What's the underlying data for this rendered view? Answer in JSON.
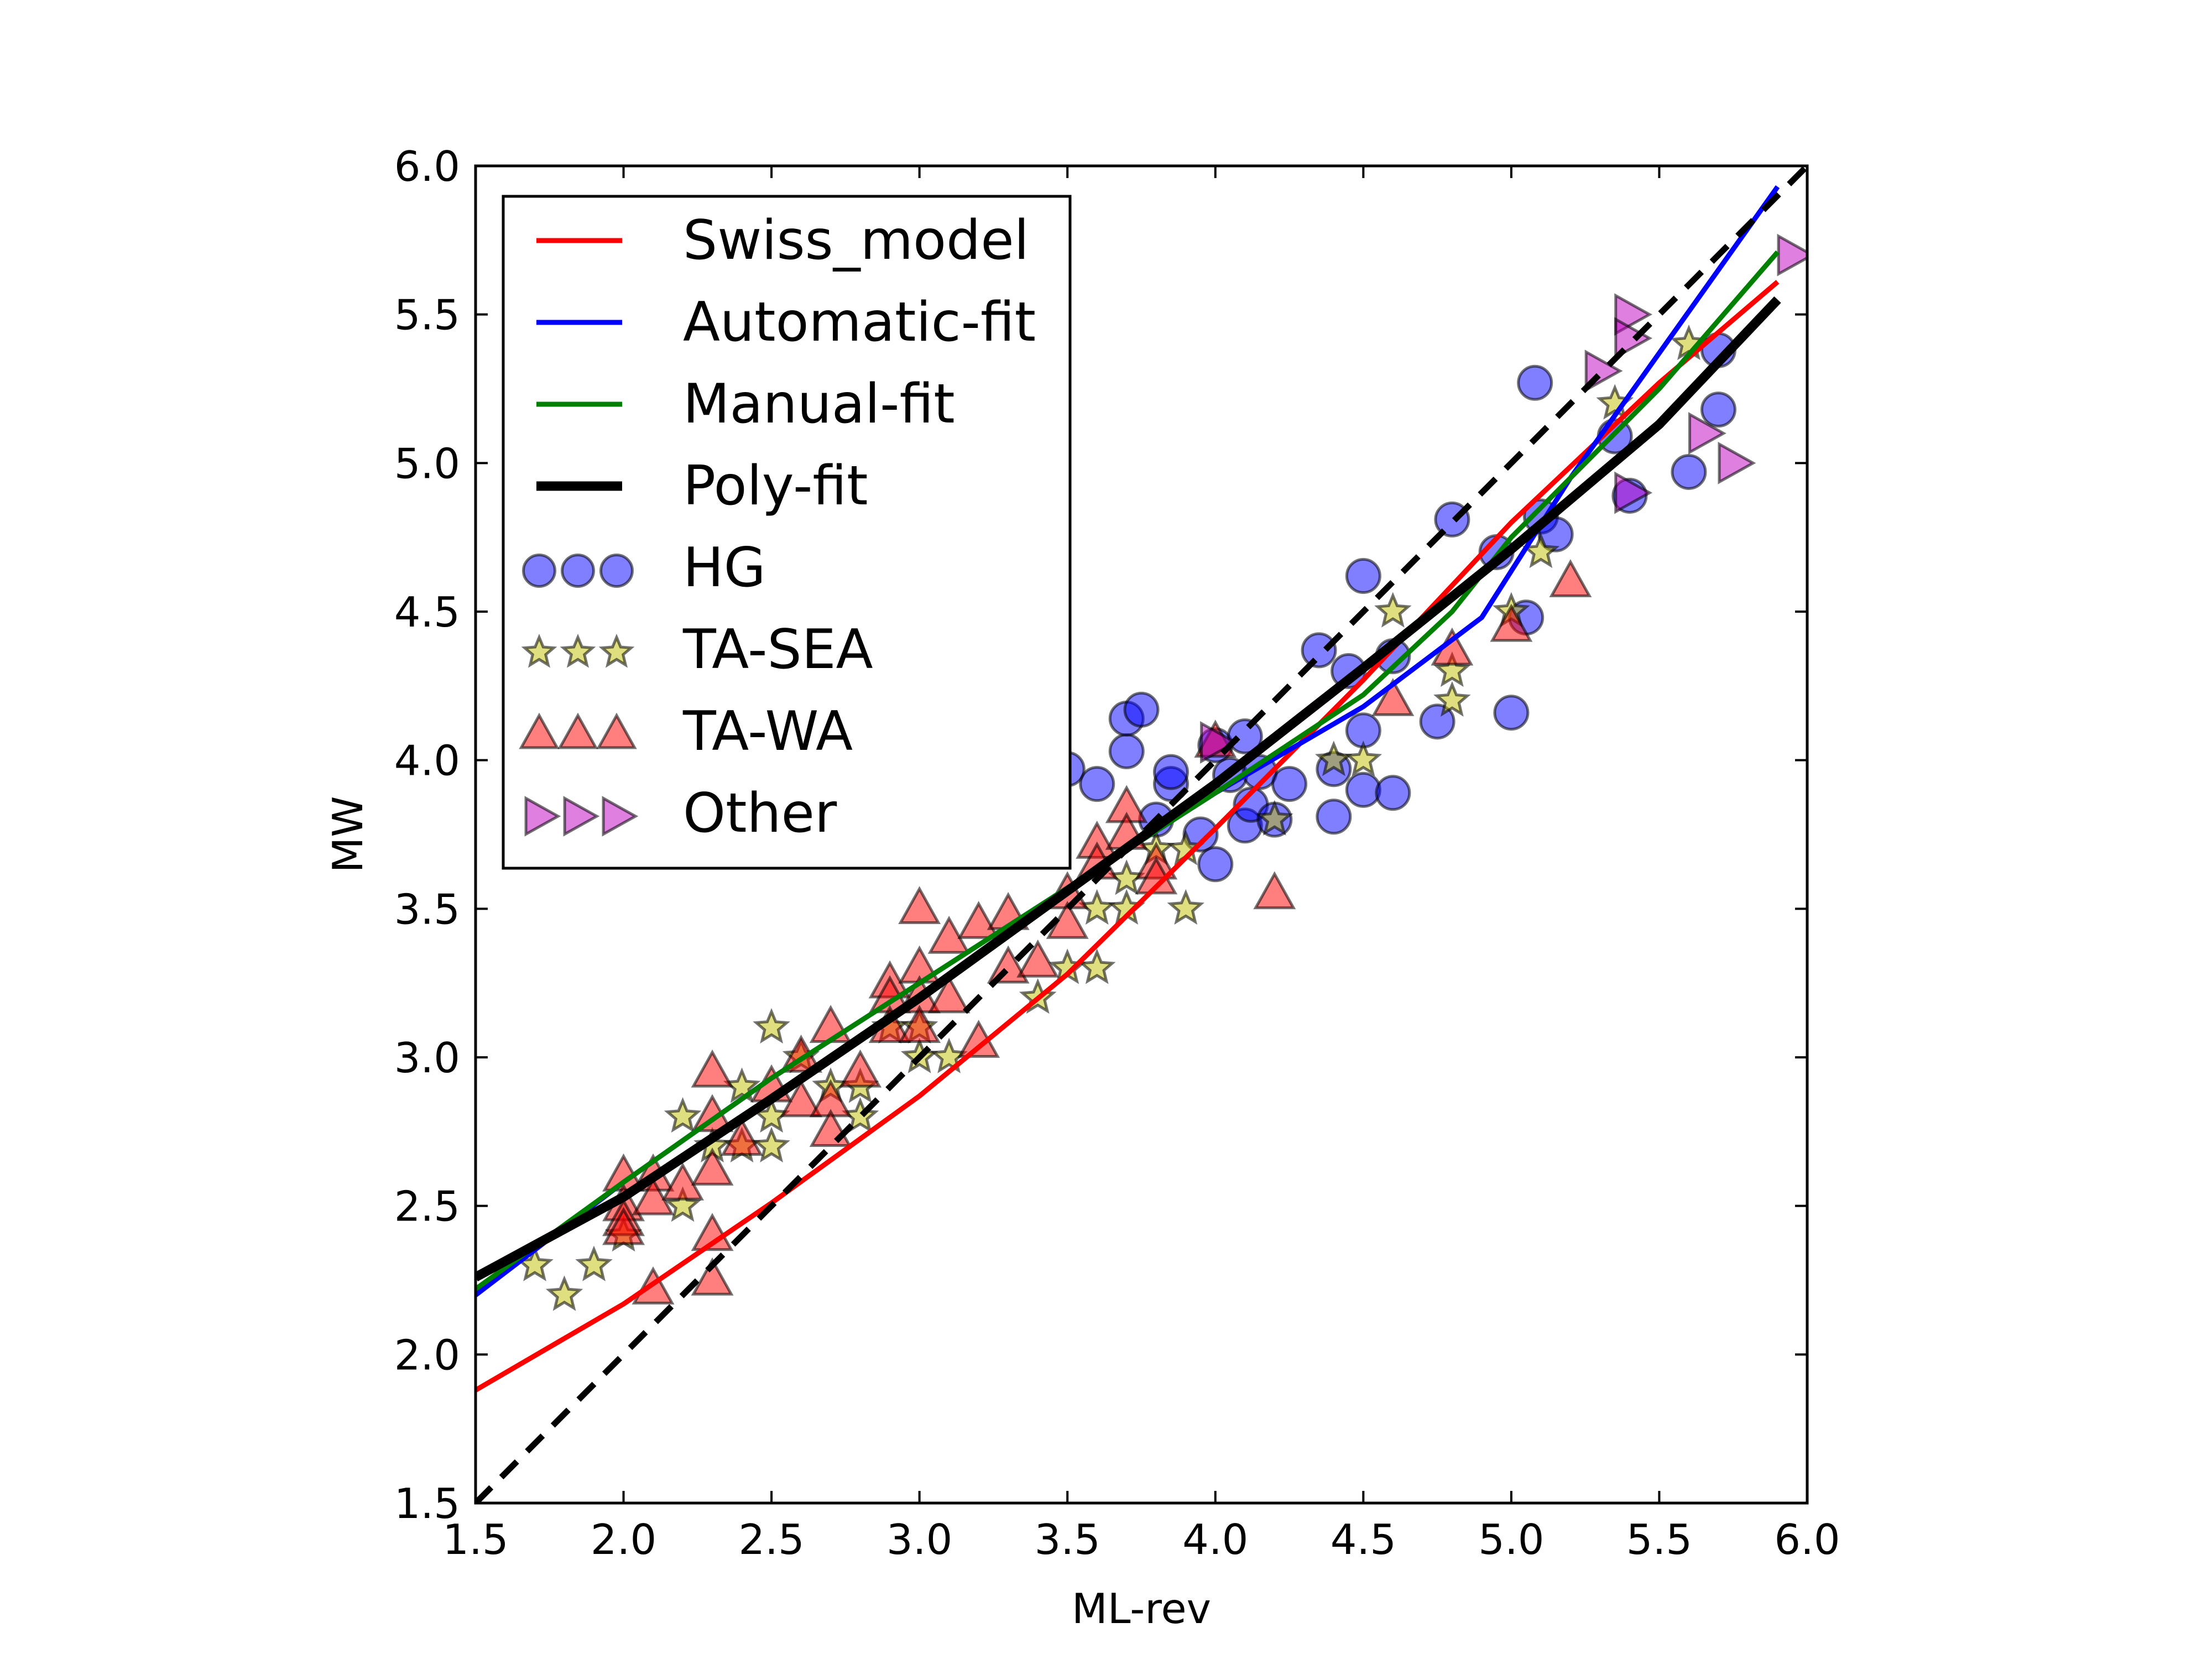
{
  "chart_data": {
    "type": "scatter",
    "title": "",
    "xlabel": "ML-rev",
    "ylabel": "MW",
    "xlim": [
      1.5,
      6.0
    ],
    "ylim": [
      1.5,
      6.0
    ],
    "xticks": [
      "1.5",
      "2.0",
      "2.5",
      "3.0",
      "3.5",
      "4.0",
      "4.5",
      "5.0",
      "5.5",
      "6.0"
    ],
    "yticks": [
      "1.5",
      "2.0",
      "2.5",
      "3.0",
      "3.5",
      "4.0",
      "4.5",
      "5.0",
      "5.5",
      "6.0"
    ],
    "grid": false,
    "legend_position": "top-left",
    "lines": [
      {
        "name": "Swiss_model",
        "color": "#ff0000",
        "points": [
          [
            1.5,
            1.88
          ],
          [
            2.0,
            2.17
          ],
          [
            2.5,
            2.51
          ],
          [
            3.0,
            2.87
          ],
          [
            3.5,
            3.28
          ],
          [
            4.0,
            3.77
          ],
          [
            4.5,
            4.27
          ],
          [
            5.0,
            4.8
          ],
          [
            5.5,
            5.27
          ],
          [
            5.9,
            5.61
          ]
        ]
      },
      {
        "name": "Automatic-fit",
        "color": "#0000ff",
        "points": [
          [
            1.5,
            2.2
          ],
          [
            2.0,
            2.58
          ],
          [
            2.5,
            2.93
          ],
          [
            3.0,
            3.25
          ],
          [
            3.5,
            3.57
          ],
          [
            4.0,
            3.89
          ],
          [
            4.5,
            4.18
          ],
          [
            4.9,
            4.48
          ],
          [
            5.2,
            4.95
          ],
          [
            5.5,
            5.37
          ],
          [
            5.9,
            5.93
          ]
        ]
      },
      {
        "name": "Manual-fit",
        "color": "#008000",
        "points": [
          [
            1.5,
            2.22
          ],
          [
            2.0,
            2.58
          ],
          [
            2.5,
            2.93
          ],
          [
            3.0,
            3.25
          ],
          [
            3.5,
            3.57
          ],
          [
            4.0,
            3.89
          ],
          [
            4.5,
            4.22
          ],
          [
            4.8,
            4.5
          ],
          [
            5.0,
            4.75
          ],
          [
            5.5,
            5.25
          ],
          [
            5.9,
            5.71
          ]
        ]
      },
      {
        "name": "Poly-fit",
        "color": "#000000",
        "points": [
          [
            1.5,
            2.26
          ],
          [
            2.0,
            2.53
          ],
          [
            2.5,
            2.86
          ],
          [
            3.0,
            3.2
          ],
          [
            3.5,
            3.56
          ],
          [
            4.0,
            3.92
          ],
          [
            4.5,
            4.31
          ],
          [
            5.0,
            4.71
          ],
          [
            5.5,
            5.13
          ],
          [
            5.9,
            5.55
          ]
        ]
      },
      {
        "name": "",
        "color": "#000000",
        "dashed": true,
        "points": [
          [
            1.5,
            1.5
          ],
          [
            6.0,
            6.0
          ]
        ]
      }
    ],
    "series": [
      {
        "name": "HG",
        "marker": "circle",
        "color": "#0000ff",
        "points": [
          [
            3.5,
            3.97
          ],
          [
            3.6,
            3.92
          ],
          [
            3.7,
            4.03
          ],
          [
            3.7,
            4.14
          ],
          [
            3.75,
            4.17
          ],
          [
            3.8,
            3.8
          ],
          [
            3.85,
            3.92
          ],
          [
            3.85,
            3.96
          ],
          [
            3.95,
            3.75
          ],
          [
            4.0,
            3.65
          ],
          [
            4.0,
            4.05
          ],
          [
            4.05,
            3.95
          ],
          [
            4.1,
            3.78
          ],
          [
            4.1,
            4.08
          ],
          [
            4.12,
            3.85
          ],
          [
            4.15,
            3.96
          ],
          [
            4.2,
            3.8
          ],
          [
            4.25,
            3.92
          ],
          [
            4.35,
            4.37
          ],
          [
            4.4,
            3.97
          ],
          [
            4.4,
            3.81
          ],
          [
            4.45,
            4.3
          ],
          [
            4.5,
            3.9
          ],
          [
            4.5,
            4.1
          ],
          [
            4.5,
            4.62
          ],
          [
            4.6,
            3.89
          ],
          [
            4.6,
            4.35
          ],
          [
            4.75,
            4.13
          ],
          [
            4.8,
            4.81
          ],
          [
            4.95,
            4.7
          ],
          [
            5.0,
            4.16
          ],
          [
            5.05,
            4.48
          ],
          [
            5.08,
            5.27
          ],
          [
            5.1,
            4.82
          ],
          [
            5.15,
            4.76
          ],
          [
            5.35,
            5.09
          ],
          [
            5.4,
            4.89
          ],
          [
            5.6,
            4.97
          ],
          [
            5.7,
            5.38
          ],
          [
            5.7,
            5.18
          ]
        ]
      },
      {
        "name": "TA-SEA",
        "marker": "star",
        "color": "#bfbf00",
        "points": [
          [
            1.7,
            2.3
          ],
          [
            1.8,
            2.2
          ],
          [
            1.9,
            2.3
          ],
          [
            2.0,
            2.4
          ],
          [
            2.2,
            2.5
          ],
          [
            2.2,
            2.8
          ],
          [
            2.3,
            2.7
          ],
          [
            2.4,
            2.7
          ],
          [
            2.4,
            2.9
          ],
          [
            2.5,
            2.7
          ],
          [
            2.5,
            2.8
          ],
          [
            2.5,
            3.1
          ],
          [
            2.6,
            3.0
          ],
          [
            2.7,
            2.9
          ],
          [
            2.8,
            2.8
          ],
          [
            2.8,
            2.9
          ],
          [
            2.9,
            3.1
          ],
          [
            3.0,
            3.0
          ],
          [
            3.0,
            3.1
          ],
          [
            3.1,
            3.0
          ],
          [
            3.4,
            3.2
          ],
          [
            3.5,
            3.3
          ],
          [
            3.6,
            3.3
          ],
          [
            3.6,
            3.5
          ],
          [
            3.7,
            3.6
          ],
          [
            3.7,
            3.5
          ],
          [
            3.8,
            3.7
          ],
          [
            3.9,
            3.5
          ],
          [
            3.9,
            3.7
          ],
          [
            4.2,
            3.8
          ],
          [
            4.4,
            4.0
          ],
          [
            4.5,
            4.0
          ],
          [
            4.6,
            4.5
          ],
          [
            4.8,
            4.2
          ],
          [
            4.8,
            4.3
          ],
          [
            5.0,
            4.5
          ],
          [
            5.1,
            4.7
          ],
          [
            5.35,
            5.2
          ],
          [
            5.6,
            5.4
          ]
        ]
      },
      {
        "name": "TA-WA",
        "marker": "triangle-up",
        "color": "#ff0000",
        "points": [
          [
            2.0,
            2.6
          ],
          [
            2.0,
            2.5
          ],
          [
            2.0,
            2.45
          ],
          [
            2.0,
            2.42
          ],
          [
            2.1,
            2.6
          ],
          [
            2.1,
            2.52
          ],
          [
            2.1,
            2.22
          ],
          [
            2.2,
            2.57
          ],
          [
            2.3,
            2.95
          ],
          [
            2.3,
            2.8
          ],
          [
            2.3,
            2.62
          ],
          [
            2.3,
            2.4
          ],
          [
            2.3,
            2.25
          ],
          [
            2.4,
            2.72
          ],
          [
            2.5,
            2.9
          ],
          [
            2.6,
            3.0
          ],
          [
            2.6,
            2.85
          ],
          [
            2.7,
            3.1
          ],
          [
            2.7,
            2.85
          ],
          [
            2.7,
            2.75
          ],
          [
            2.8,
            2.95
          ],
          [
            2.9,
            3.25
          ],
          [
            2.9,
            3.2
          ],
          [
            2.9,
            3.1
          ],
          [
            3.0,
            3.5
          ],
          [
            3.0,
            3.3
          ],
          [
            3.0,
            3.2
          ],
          [
            3.0,
            3.1
          ],
          [
            3.1,
            3.4
          ],
          [
            3.1,
            3.2
          ],
          [
            3.2,
            3.45
          ],
          [
            3.2,
            3.05
          ],
          [
            3.3,
            3.48
          ],
          [
            3.3,
            3.3
          ],
          [
            3.4,
            3.32
          ],
          [
            3.4,
            3.7
          ],
          [
            3.5,
            3.55
          ],
          [
            3.5,
            3.45
          ],
          [
            3.6,
            3.72
          ],
          [
            3.6,
            3.65
          ],
          [
            3.7,
            3.84
          ],
          [
            3.7,
            3.75
          ],
          [
            3.8,
            3.65
          ],
          [
            3.8,
            3.6
          ],
          [
            4.0,
            4.06
          ],
          [
            4.2,
            3.55
          ],
          [
            4.6,
            4.2
          ],
          [
            4.8,
            4.37
          ],
          [
            5.0,
            4.45
          ],
          [
            5.2,
            4.6
          ]
        ]
      },
      {
        "name": "Other",
        "marker": "triangle-right",
        "color": "#bf00bf",
        "points": [
          [
            4.0,
            4.06
          ],
          [
            5.3,
            5.31
          ],
          [
            5.4,
            5.5
          ],
          [
            5.4,
            5.42
          ],
          [
            5.4,
            4.9
          ],
          [
            5.65,
            5.1
          ],
          [
            5.75,
            5.0
          ],
          [
            5.95,
            5.7
          ]
        ]
      }
    ]
  }
}
